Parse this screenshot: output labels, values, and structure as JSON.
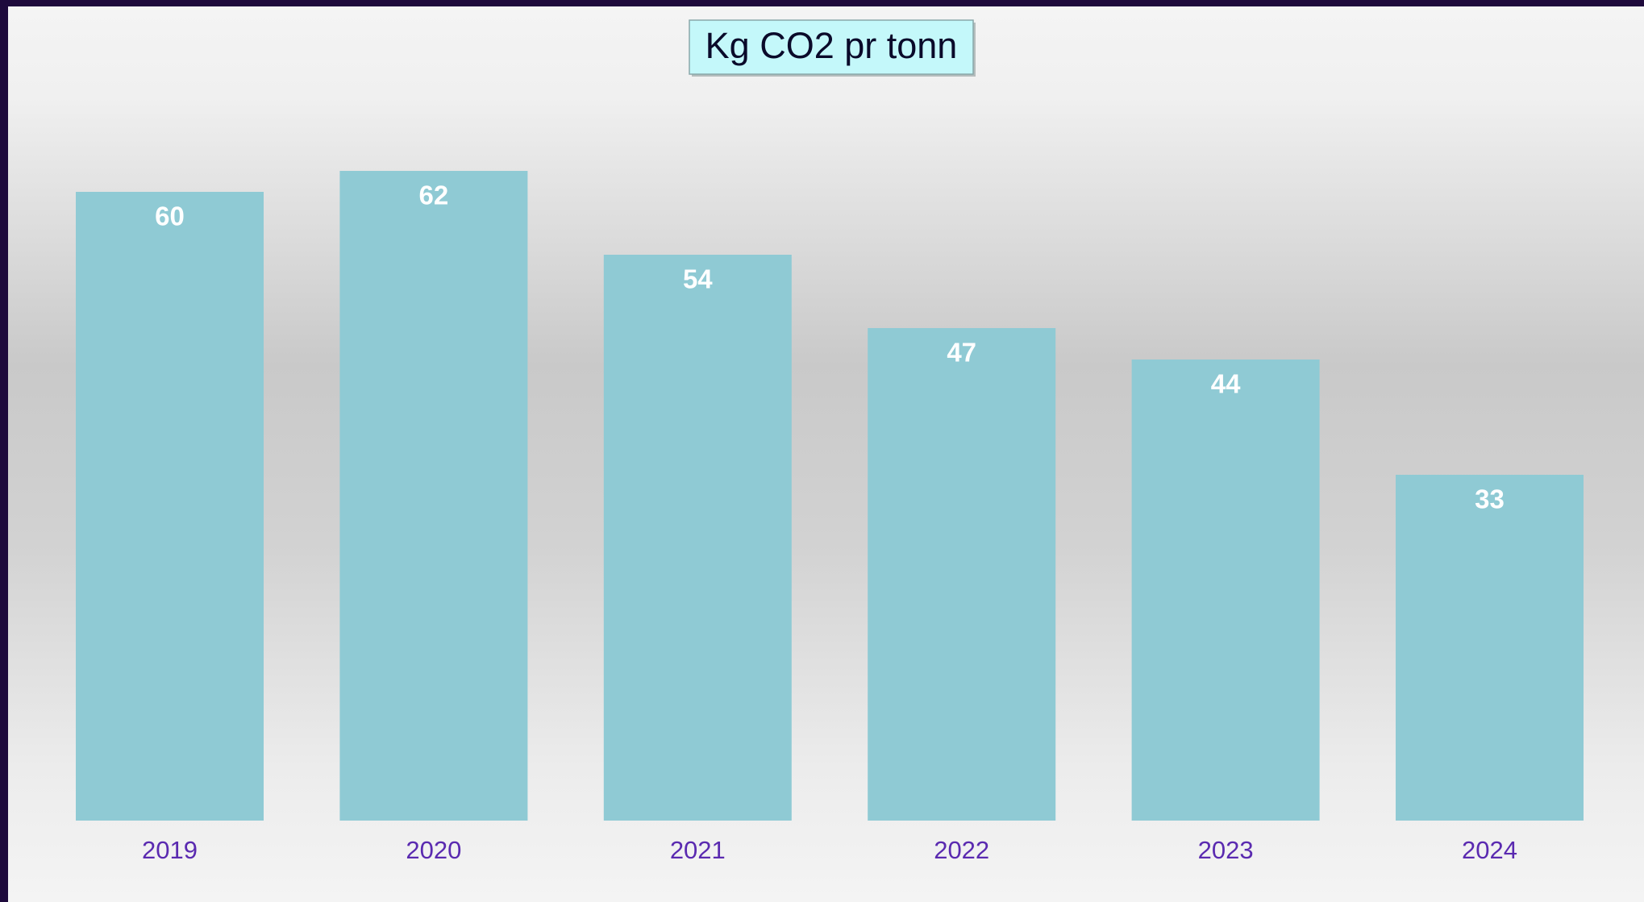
{
  "chart_data": {
    "type": "bar",
    "title": "Kg CO2 pr tonn",
    "categories": [
      "2019",
      "2020",
      "2021",
      "2022",
      "2023",
      "2024"
    ],
    "values": [
      60,
      62,
      54,
      47,
      44,
      33
    ],
    "color": "#8fcad4",
    "ylim": [
      0,
      70
    ]
  }
}
